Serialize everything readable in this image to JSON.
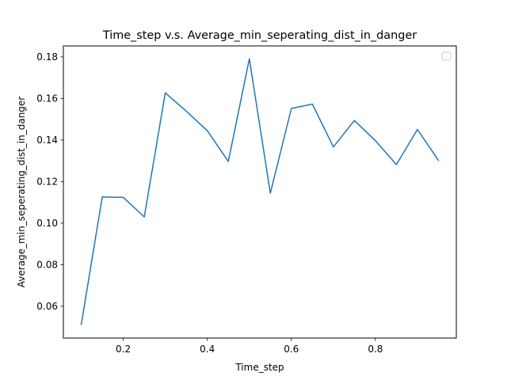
{
  "chart_data": {
    "type": "line",
    "title": "Time_step v.s. Average_min_seperating_dist_in_danger",
    "xlabel": "Time_step",
    "ylabel": "Average_min_seperating_dist_in_danger",
    "xlim": [
      0.0575,
      0.9925
    ],
    "ylim": [
      0.0447,
      0.1853
    ],
    "x_ticks": [
      0.2,
      0.4,
      0.6,
      0.8
    ],
    "x_tick_labels": [
      "0.2",
      "0.4",
      "0.6",
      "0.8"
    ],
    "y_ticks": [
      0.06,
      0.08,
      0.1,
      0.12,
      0.14,
      0.16,
      0.18
    ],
    "y_tick_labels": [
      "0.06",
      "0.08",
      "0.10",
      "0.12",
      "0.14",
      "0.16",
      "0.18"
    ],
    "grid": false,
    "legend": "top-right (empty)",
    "series": [
      {
        "color": "#1f77b4",
        "x": [
          0.1,
          0.15,
          0.2,
          0.25,
          0.3,
          0.35,
          0.4,
          0.45,
          0.5,
          0.55,
          0.6,
          0.65,
          0.7,
          0.75,
          0.8,
          0.85,
          0.9,
          0.95
        ],
        "y": [
          0.0512,
          0.1126,
          0.1124,
          0.103,
          0.1627,
          0.1539,
          0.1445,
          0.1297,
          0.1791,
          0.1144,
          0.1552,
          0.1573,
          0.1367,
          0.1494,
          0.1397,
          0.1282,
          0.1451,
          0.1302
        ]
      }
    ]
  }
}
